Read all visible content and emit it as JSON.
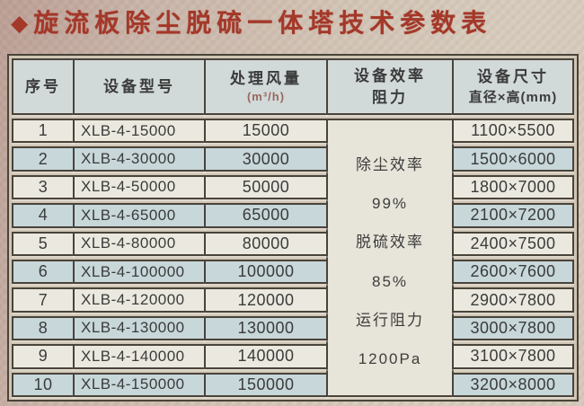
{
  "title": {
    "bullet": "◆",
    "text": "旋流板除尘脱硫一体塔技术参数表"
  },
  "table": {
    "headers": {
      "no": "序号",
      "model": "设备型号",
      "air_line1": "处理风量",
      "air_line2": "(m³/h)",
      "eff_line1": "设备效率",
      "eff_line2": "阻力",
      "size_line1": "设备尺寸",
      "size_line2": "直径×高(mm)"
    },
    "merged": {
      "l1": "除尘效率",
      "l2": "99%",
      "l3": "脱硫效率",
      "l4": "85%",
      "l5": "运行阻力",
      "l6": "1200Pa"
    },
    "rows": [
      {
        "no": "1",
        "model": "XLB-4-15000",
        "air": "15000",
        "size": "1100×5500"
      },
      {
        "no": "2",
        "model": "XLB-4-30000",
        "air": "30000",
        "size": "1500×6000"
      },
      {
        "no": "3",
        "model": "XLB-4-50000",
        "air": "50000",
        "size": "1800×7000"
      },
      {
        "no": "4",
        "model": "XLB-4-65000",
        "air": "65000",
        "size": "2100×7200"
      },
      {
        "no": "5",
        "model": "XLB-4-80000",
        "air": "80000",
        "size": "2400×7500"
      },
      {
        "no": "6",
        "model": "XLB-4-100000",
        "air": "100000",
        "size": "2600×7600"
      },
      {
        "no": "7",
        "model": "XLB-4-120000",
        "air": "120000",
        "size": "2900×7800"
      },
      {
        "no": "8",
        "model": "XLB-4-130000",
        "air": "130000",
        "size": "3000×7800"
      },
      {
        "no": "9",
        "model": "XLB-4-140000",
        "air": "140000",
        "size": "3100×7800"
      },
      {
        "no": "10",
        "model": "XLB-4-150000",
        "air": "150000",
        "size": "3200×8000"
      }
    ]
  },
  "colors": {
    "title_red": "#a43829",
    "row_light": "#ebe9df",
    "row_blue": "#c7d7da",
    "header_bg": "#d2dad9",
    "merged_bg": "#e7e4d9",
    "border": "#49433a"
  }
}
